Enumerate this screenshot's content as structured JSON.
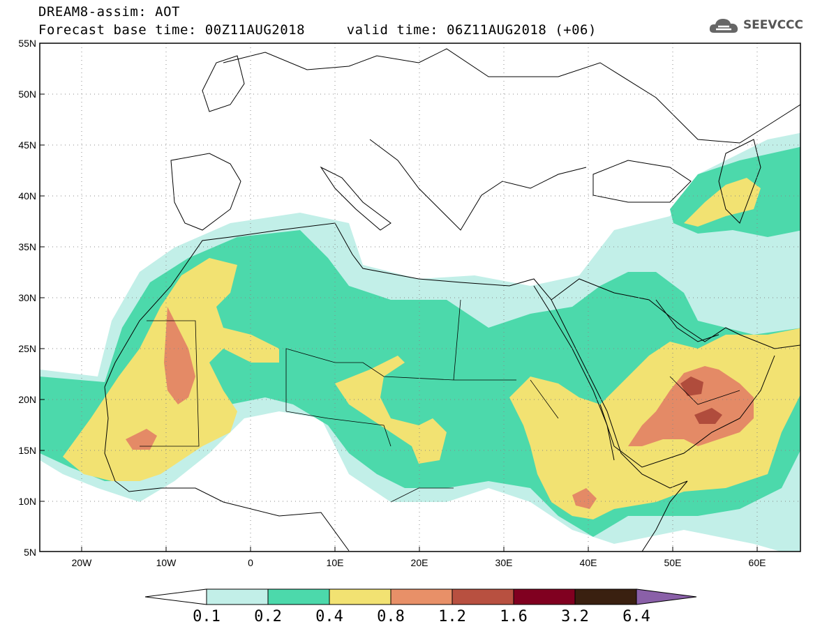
{
  "header": {
    "line1": "DREAM8-assim: AOT",
    "line2": "Forecast base time: 00Z11AUG2018     valid time: 06Z11AUG2018 (+06)"
  },
  "logo": {
    "text": "SEEVCCC",
    "icon": "cloud-icon"
  },
  "map": {
    "lon_range": [
      -25,
      65
    ],
    "lat_range": [
      5,
      55
    ],
    "lon_labels": [
      "20W",
      "10W",
      "0",
      "10E",
      "20E",
      "30E",
      "40E",
      "50E",
      "60E"
    ],
    "lat_labels": [
      "55N",
      "50N",
      "45N",
      "40N",
      "35N",
      "30N",
      "25N",
      "20N",
      "15N",
      "10N",
      "5N"
    ],
    "grid": "dotted"
  },
  "colorbar": {
    "labels": [
      "0.1",
      "0.2",
      "0.4",
      "0.8",
      "1.2",
      "1.6",
      "3.2",
      "6.4"
    ],
    "colors": [
      "#ffffff",
      "#c2efe8",
      "#4cd9ab",
      "#f2e272",
      "#e89068",
      "#b85040",
      "#800020",
      "#3a2010",
      "#8a60a8"
    ]
  },
  "fill_colors": {
    "c1": "#c2efe8",
    "c2": "#4cd9ab",
    "c3": "#f2e272",
    "c4": "#e48a66",
    "c5": "#b04c3c"
  }
}
